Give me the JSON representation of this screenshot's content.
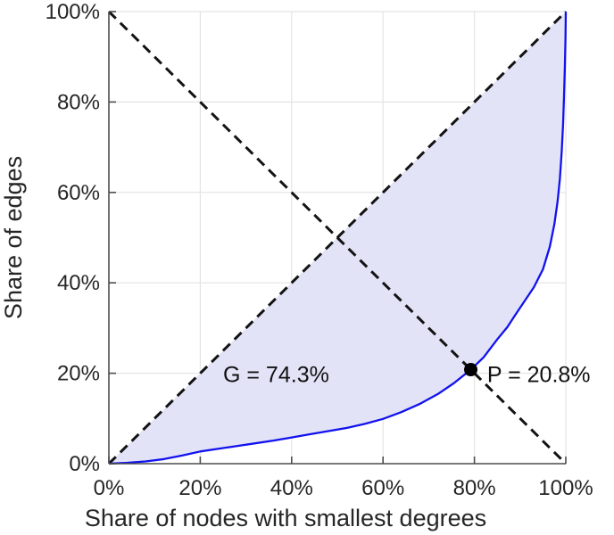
{
  "chart_data": {
    "type": "line",
    "title": "",
    "xlabel": "Share of nodes with smallest degrees",
    "ylabel": "Share of edges",
    "xlim": [
      0,
      100
    ],
    "ylim": [
      0,
      100
    ],
    "xticks": [
      0,
      20,
      40,
      60,
      80,
      100
    ],
    "yticks": [
      0,
      20,
      40,
      60,
      80,
      100
    ],
    "xtick_labels": [
      "0%",
      "20%",
      "40%",
      "60%",
      "80%",
      "100%"
    ],
    "ytick_labels": [
      "0%",
      "20%",
      "40%",
      "60%",
      "80%",
      "100%"
    ],
    "grid": true,
    "legend": "none",
    "series": [
      {
        "name": "lorenz-curve",
        "style": "solid",
        "filled_against_diagonal": true,
        "points": [
          [
            0,
            0
          ],
          [
            4,
            0.2
          ],
          [
            8,
            0.5
          ],
          [
            12,
            1.0
          ],
          [
            16,
            1.8
          ],
          [
            20,
            2.7
          ],
          [
            24,
            3.3
          ],
          [
            28,
            3.9
          ],
          [
            32,
            4.5
          ],
          [
            36,
            5.1
          ],
          [
            40,
            5.8
          ],
          [
            44,
            6.5
          ],
          [
            48,
            7.2
          ],
          [
            52,
            7.9
          ],
          [
            56,
            8.8
          ],
          [
            60,
            9.9
          ],
          [
            64,
            11.4
          ],
          [
            68,
            13.2
          ],
          [
            72,
            15.4
          ],
          [
            75.5,
            17.8
          ],
          [
            79.2,
            20.8
          ],
          [
            82,
            23.5
          ],
          [
            85,
            27.5
          ],
          [
            87.2,
            30.2
          ],
          [
            89,
            33
          ],
          [
            91,
            36
          ],
          [
            93,
            39
          ],
          [
            95,
            43
          ],
          [
            96.5,
            48
          ],
          [
            97.5,
            53
          ],
          [
            98.2,
            58
          ],
          [
            98.7,
            63
          ],
          [
            99.1,
            69
          ],
          [
            99.4,
            75
          ],
          [
            99.6,
            81
          ],
          [
            99.8,
            88
          ],
          [
            99.93,
            94
          ],
          [
            100,
            100
          ]
        ]
      },
      {
        "name": "equality-diagonal",
        "style": "dashed",
        "points": [
          [
            0,
            0
          ],
          [
            100,
            100
          ]
        ]
      },
      {
        "name": "anti-diagonal",
        "style": "dashed",
        "points": [
          [
            0,
            100
          ],
          [
            100,
            0
          ]
        ]
      }
    ],
    "marker": {
      "x": 79.2,
      "y": 20.8,
      "label": "P = 20.8%"
    },
    "annotations": [
      {
        "id": "gini-label",
        "text": "G = 74.3%",
        "x": 25.0,
        "y": 18.0,
        "anchor": "start"
      },
      {
        "id": "p-label",
        "text": "P = 20.8%",
        "x": 82.8,
        "y": 18.0,
        "anchor": "start"
      }
    ],
    "colors": {
      "curve": "#1212ee",
      "fill": "#e3e3f8",
      "dashed": "#131313",
      "grid": "#e4e4e4",
      "axis": "#4d4d4d",
      "text": "#262626",
      "marker": "#000000"
    }
  }
}
